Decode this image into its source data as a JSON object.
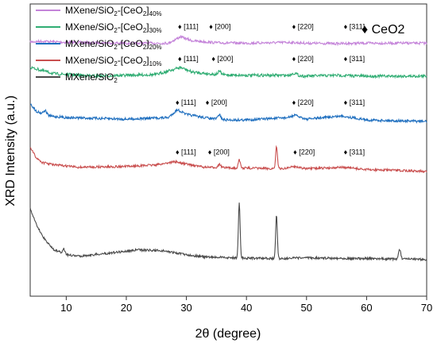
{
  "chart_data": {
    "type": "line",
    "xlabel": "2θ (degree)",
    "ylabel": "XRD Intensity (a.u.)",
    "xlim": [
      4,
      70
    ],
    "xticks": [
      10,
      20,
      30,
      40,
      50,
      60,
      70
    ],
    "yticks": "none",
    "grid": false,
    "legend_position": "top-left",
    "marker_legend": "♦ CeO2",
    "series": [
      {
        "name": "MXene/SiO2-[CeO2]40%",
        "legend": {
          "base": "MXene/SiO",
          "sub1": "2",
          "mid": "-[CeO",
          "sub2": "2",
          "close": "]",
          "sub3": "40%"
        },
        "color": "#c483d9",
        "level": 0.02,
        "profile": [
          [
            4,
            0.5
          ],
          [
            6,
            -0.5
          ],
          [
            10,
            1
          ],
          [
            20,
            2
          ],
          [
            27,
            2
          ],
          [
            29,
            -6
          ],
          [
            31,
            -1
          ],
          [
            35,
            1.5
          ],
          [
            40,
            2
          ],
          [
            47,
            1
          ],
          [
            50,
            2
          ],
          [
            55,
            2.5
          ],
          [
            60,
            2
          ],
          [
            70,
            2
          ]
        ],
        "noise": 1.6,
        "peaks": [
          {
            "x": 29,
            "h": 0,
            "w": 1
          }
        ],
        "annotations": [
          {
            "x": 28.6,
            "label": "♦ [111]"
          },
          {
            "x": 33.8,
            "label": "♦ [200]"
          },
          {
            "x": 47.6,
            "label": "♦ [220]"
          },
          {
            "x": 56.2,
            "label": "♦ [311]"
          }
        ]
      },
      {
        "name": "MXene/SiO2-[CeO2]30%",
        "legend": {
          "base": "MXene/SiO",
          "sub1": "2",
          "mid": "-[CeO",
          "sub2": "2",
          "close": "]",
          "sub3": "30%"
        },
        "color": "#30ad73",
        "level": 0.13,
        "profile": [
          [
            4,
            -8
          ],
          [
            6,
            -4
          ],
          [
            8,
            0
          ],
          [
            15,
            3
          ],
          [
            25,
            1
          ],
          [
            29,
            -8
          ],
          [
            31,
            -2
          ],
          [
            35,
            1
          ],
          [
            40,
            2
          ],
          [
            47,
            2
          ],
          [
            50,
            3
          ],
          [
            55,
            2
          ],
          [
            60,
            3
          ],
          [
            70,
            3
          ]
        ],
        "noise": 1.8,
        "peaks": [
          {
            "x": 35.5,
            "h": 4,
            "w": 0.25
          },
          {
            "x": 48,
            "h": 3,
            "w": 0.4
          }
        ],
        "annotations": [
          {
            "x": 28.6,
            "label": "♦ [111]"
          },
          {
            "x": 34.2,
            "label": "♦ [200]"
          },
          {
            "x": 47.6,
            "label": "♦ [220]"
          },
          {
            "x": 56.2,
            "label": "♦ [311]"
          }
        ]
      },
      {
        "name": "MXene/SiO2-[CeO2]20%",
        "legend": {
          "base": "MXene/SiO",
          "sub1": "2",
          "mid": "-[CeO",
          "sub2": "2",
          "close": "]",
          "sub3": "20%"
        },
        "color": "#1f6fbf",
        "level": 0.28,
        "profile": [
          [
            4,
            -18
          ],
          [
            5,
            -8
          ],
          [
            6,
            -5
          ],
          [
            7,
            -2
          ],
          [
            10,
            0
          ],
          [
            20,
            2
          ],
          [
            27,
            0
          ],
          [
            28.5,
            -10
          ],
          [
            30,
            -4
          ],
          [
            33,
            0
          ],
          [
            36,
            3
          ],
          [
            40,
            3
          ],
          [
            47,
            0
          ],
          [
            48,
            -3
          ],
          [
            50,
            2
          ],
          [
            56,
            -2
          ],
          [
            60,
            3
          ],
          [
            70,
            5
          ]
        ],
        "noise": 1.6,
        "peaks": [
          {
            "x": 35.5,
            "h": 6,
            "w": 0.25
          },
          {
            "x": 6.5,
            "h": 5,
            "w": 0.3
          }
        ],
        "annotations": [
          {
            "x": 28.2,
            "label": "♦ [111]"
          },
          {
            "x": 33.2,
            "label": "♦ [200]"
          },
          {
            "x": 47.6,
            "label": "♦ [220]"
          },
          {
            "x": 56.2,
            "label": "♦ [311]"
          }
        ]
      },
      {
        "name": "MXene/SiO2-[CeO2]10%",
        "legend": {
          "base": "MXene/SiO",
          "sub1": "2",
          "mid": "-[CeO",
          "sub2": "2",
          "close": "]",
          "sub3": "10%"
        },
        "color": "#c94f4f",
        "level": 0.45,
        "profile": [
          [
            4,
            -25
          ],
          [
            5,
            -12
          ],
          [
            6,
            -6
          ],
          [
            8,
            -3
          ],
          [
            12,
            0
          ],
          [
            20,
            -1
          ],
          [
            25,
            -3
          ],
          [
            28,
            -7
          ],
          [
            30,
            -4
          ],
          [
            33,
            0
          ],
          [
            38,
            1
          ],
          [
            40,
            1
          ],
          [
            46,
            2
          ],
          [
            48,
            -1
          ],
          [
            50,
            2
          ],
          [
            56,
            0
          ],
          [
            60,
            3
          ],
          [
            70,
            5
          ]
        ],
        "noise": 1.4,
        "peaks": [
          {
            "x": 38.8,
            "h": 10,
            "w": 0.18
          },
          {
            "x": 45,
            "h": 28,
            "w": 0.15
          },
          {
            "x": 35.5,
            "h": 4,
            "w": 0.25
          }
        ],
        "annotations": [
          {
            "x": 28.2,
            "label": "♦ [111]"
          },
          {
            "x": 33.6,
            "label": "♦ [200]"
          },
          {
            "x": 47.8,
            "label": "♦ [220]"
          },
          {
            "x": 56.2,
            "label": "♦ [311]"
          }
        ]
      },
      {
        "name": "MXene/SiO2",
        "legend": {
          "base": "MXene/SiO",
          "sub1": "2",
          "mid": "",
          "sub2": "",
          "close": "",
          "sub3": ""
        },
        "color": "#4a4a4a",
        "level": 0.76,
        "profile": [
          [
            4,
            -62
          ],
          [
            5,
            -42
          ],
          [
            6,
            -28
          ],
          [
            7,
            -18
          ],
          [
            8,
            -10
          ],
          [
            10,
            -4
          ],
          [
            12,
            -2
          ],
          [
            16,
            -5
          ],
          [
            22,
            -10
          ],
          [
            26,
            -9
          ],
          [
            30,
            -4
          ],
          [
            33,
            -1
          ],
          [
            38,
            0
          ],
          [
            45,
            1
          ],
          [
            50,
            0
          ],
          [
            60,
            1
          ],
          [
            70,
            2
          ]
        ],
        "noise": 1.4,
        "peaks": [
          {
            "x": 38.8,
            "h": 70,
            "w": 0.14
          },
          {
            "x": 45,
            "h": 55,
            "w": 0.14
          },
          {
            "x": 65.5,
            "h": 12,
            "w": 0.18
          },
          {
            "x": 9.6,
            "h": 6,
            "w": 0.2
          }
        ],
        "annotations": []
      }
    ]
  }
}
